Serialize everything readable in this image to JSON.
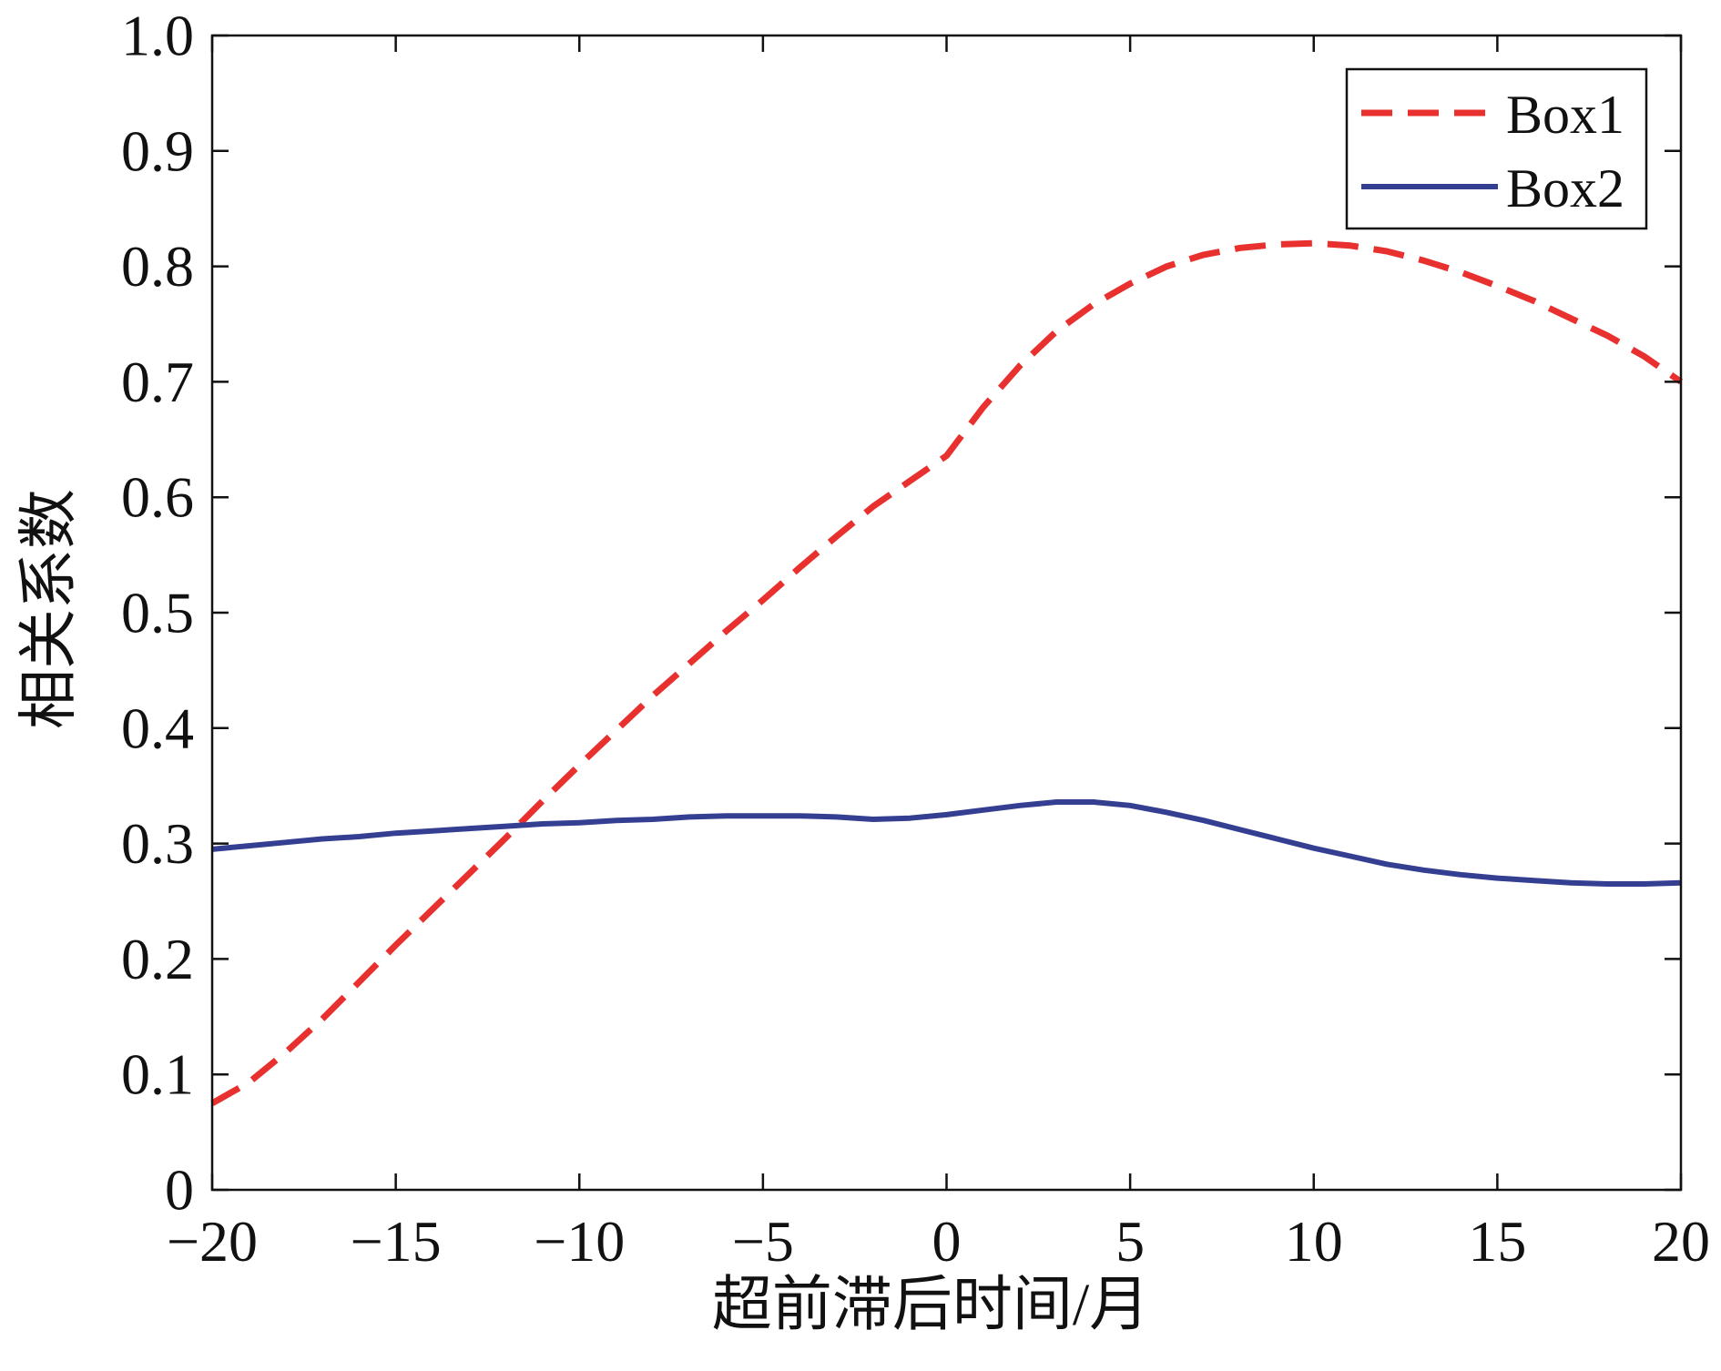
{
  "chart_data": {
    "type": "line",
    "xlabel": "超前滞后时间/月",
    "ylabel": "相关系数",
    "xlim": [
      -20,
      20
    ],
    "ylim": [
      0,
      1
    ],
    "grid": false,
    "legend_position": "top-right",
    "x_ticks": [
      -20,
      -15,
      -10,
      -5,
      0,
      5,
      10,
      15,
      20
    ],
    "x_tick_labels": [
      "−20",
      "−15",
      "−10",
      "−5",
      "0",
      "5",
      "10",
      "15",
      "20"
    ],
    "y_ticks": [
      0,
      0.1,
      0.2,
      0.3,
      0.4,
      0.5,
      0.6,
      0.7,
      0.8,
      0.9,
      1.0
    ],
    "y_tick_labels": [
      "0",
      "0.1",
      "0.2",
      "0.3",
      "0.4",
      "0.5",
      "0.6",
      "0.7",
      "0.8",
      "0.9",
      "1.0"
    ],
    "series": [
      {
        "name": "Box1",
        "color": "#e8312f",
        "style": "dashed",
        "x": [
          -20,
          -19,
          -18,
          -17,
          -16,
          -15,
          -14,
          -13,
          -12,
          -11,
          -10,
          -9,
          -8,
          -7,
          -6,
          -5,
          -4,
          -3,
          -2,
          -1,
          0,
          1,
          2,
          3,
          4,
          5,
          6,
          7,
          8,
          9,
          10,
          11,
          12,
          13,
          14,
          15,
          16,
          17,
          18,
          19,
          20
        ],
        "y": [
          0.075,
          0.093,
          0.119,
          0.148,
          0.18,
          0.212,
          0.243,
          0.274,
          0.305,
          0.337,
          0.368,
          0.398,
          0.428,
          0.456,
          0.484,
          0.511,
          0.539,
          0.566,
          0.592,
          0.614,
          0.636,
          0.678,
          0.714,
          0.744,
          0.767,
          0.785,
          0.8,
          0.81,
          0.816,
          0.819,
          0.82,
          0.818,
          0.813,
          0.805,
          0.795,
          0.783,
          0.77,
          0.755,
          0.74,
          0.722,
          0.7
        ]
      },
      {
        "name": "Box2",
        "color": "#353f92",
        "style": "solid",
        "x": [
          -20,
          -19,
          -18,
          -17,
          -16,
          -15,
          -14,
          -13,
          -12,
          -11,
          -10,
          -9,
          -8,
          -7,
          -6,
          -5,
          -4,
          -3,
          -2,
          -1,
          0,
          1,
          2,
          3,
          4,
          5,
          6,
          7,
          8,
          9,
          10,
          11,
          12,
          13,
          14,
          15,
          16,
          17,
          18,
          19,
          20
        ],
        "y": [
          0.295,
          0.298,
          0.301,
          0.304,
          0.306,
          0.309,
          0.311,
          0.313,
          0.315,
          0.317,
          0.318,
          0.32,
          0.321,
          0.323,
          0.324,
          0.324,
          0.324,
          0.323,
          0.321,
          0.322,
          0.325,
          0.329,
          0.333,
          0.336,
          0.336,
          0.333,
          0.327,
          0.32,
          0.312,
          0.304,
          0.296,
          0.289,
          0.282,
          0.277,
          0.273,
          0.27,
          0.268,
          0.266,
          0.265,
          0.265,
          0.266
        ]
      }
    ]
  }
}
